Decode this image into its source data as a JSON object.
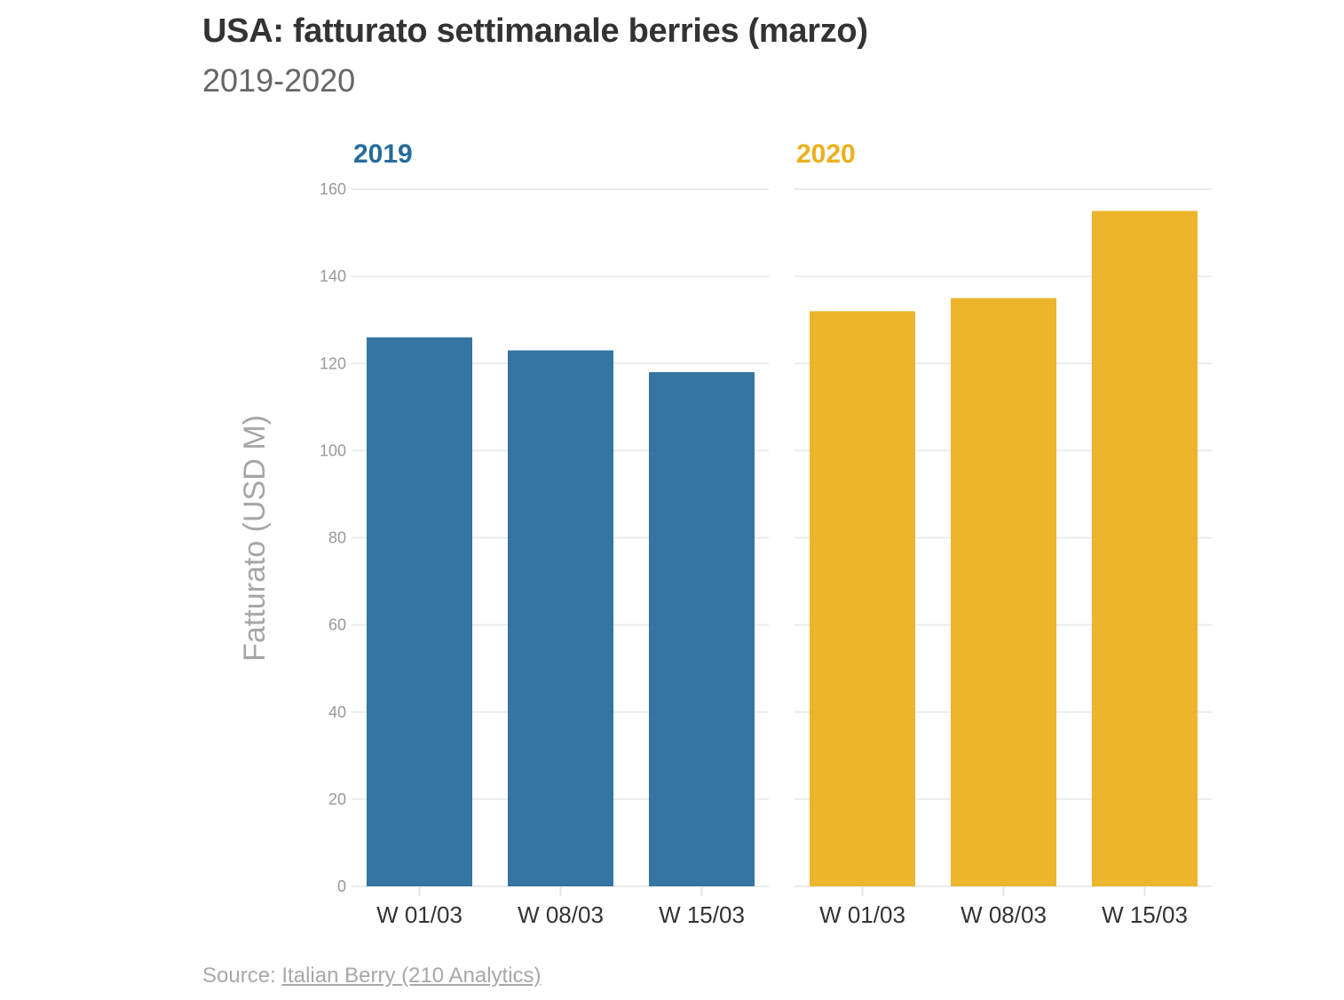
{
  "header": {
    "title": "USA: fatturato settimanale berries (marzo)",
    "subtitle": "2019-2020"
  },
  "footer": {
    "source_prefix": "Source: ",
    "source_link": "Italian Berry (210 Analytics)"
  },
  "chart_data": {
    "type": "bar",
    "title": "USA: fatturato settimanale berries (marzo)",
    "subtitle": "2019-2020",
    "xlabel": "",
    "ylabel": "Fatturato (USD M)",
    "ylim": [
      0,
      160
    ],
    "yticks": [
      0,
      20,
      40,
      60,
      80,
      100,
      120,
      140,
      160
    ],
    "grid": true,
    "legend": "none",
    "categories": [
      "W 01/03",
      "W 08/03",
      "W 15/03"
    ],
    "series": [
      {
        "name": "2019",
        "color": "#276c9b",
        "values": [
          126,
          123,
          118
        ]
      },
      {
        "name": "2020",
        "color": "#ecb01f",
        "values": [
          132,
          135,
          155
        ]
      }
    ],
    "source": "Source: Italian Berry (210 Analytics)"
  }
}
